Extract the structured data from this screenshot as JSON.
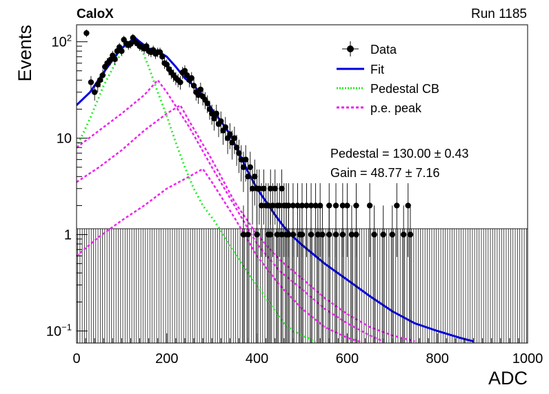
{
  "header": {
    "experiment": "CaloX",
    "run": "Run 1185"
  },
  "legend": [
    {
      "label": "Data",
      "kind": "marker",
      "color": "#000000"
    },
    {
      "label": "Fit",
      "kind": "solid",
      "color": "#0000dd"
    },
    {
      "label": "Pedestal CB",
      "kind": "dotted",
      "color": "#22ee22"
    },
    {
      "label": "p.e. peak",
      "kind": "dashed",
      "color": "#ee22ee"
    }
  ],
  "fit_results": {
    "pedestal": "Pedestal = 130.00",
    "pedestal_err": "± 0.43",
    "gain": "Gain = 48.77",
    "gain_err": "± 7.16"
  },
  "chart_data": {
    "type": "scatter",
    "xlabel": "ADC",
    "ylabel": "Events",
    "xlim": [
      0,
      1000
    ],
    "ylim": [
      0.075,
      150
    ],
    "ylog": true,
    "xticks": [
      "0",
      "200",
      "400",
      "600",
      "800",
      "1000"
    ],
    "yticks": [
      {
        "value": 0.1,
        "base": "10",
        "exp": "−1"
      },
      {
        "value": 1,
        "label": "1"
      },
      {
        "value": 10,
        "label": "10"
      },
      {
        "value": 100,
        "base": "10",
        "exp": "2"
      }
    ],
    "bin_width": 5,
    "data_points": [
      [
        22,
        123
      ],
      [
        32,
        38
      ],
      [
        40,
        30
      ],
      [
        47,
        36
      ],
      [
        52,
        40
      ],
      [
        58,
        45
      ],
      [
        63,
        55
      ],
      [
        68,
        60
      ],
      [
        75,
        65
      ],
      [
        80,
        72
      ],
      [
        85,
        66
      ],
      [
        90,
        80
      ],
      [
        95,
        88
      ],
      [
        100,
        80
      ],
      [
        105,
        105
      ],
      [
        110,
        96
      ],
      [
        115,
        92
      ],
      [
        120,
        95
      ],
      [
        125,
        110
      ],
      [
        130,
        100
      ],
      [
        135,
        96
      ],
      [
        140,
        90
      ],
      [
        145,
        88
      ],
      [
        150,
        85
      ],
      [
        155,
        90
      ],
      [
        160,
        80
      ],
      [
        165,
        78
      ],
      [
        170,
        82
      ],
      [
        175,
        75
      ],
      [
        180,
        78
      ],
      [
        185,
        78
      ],
      [
        190,
        70
      ],
      [
        195,
        60
      ],
      [
        200,
        58
      ],
      [
        205,
        52
      ],
      [
        210,
        48
      ],
      [
        215,
        45
      ],
      [
        220,
        42
      ],
      [
        225,
        40
      ],
      [
        230,
        38
      ],
      [
        235,
        48
      ],
      [
        240,
        50
      ],
      [
        245,
        45
      ],
      [
        250,
        40
      ],
      [
        255,
        42
      ],
      [
        260,
        35
      ],
      [
        265,
        30
      ],
      [
        270,
        28
      ],
      [
        275,
        32
      ],
      [
        280,
        27
      ],
      [
        285,
        25
      ],
      [
        290,
        23
      ],
      [
        295,
        20
      ],
      [
        300,
        18
      ],
      [
        305,
        16
      ],
      [
        310,
        18
      ],
      [
        315,
        14
      ],
      [
        320,
        15
      ],
      [
        325,
        12
      ],
      [
        330,
        13
      ],
      [
        335,
        10
      ],
      [
        340,
        11
      ],
      [
        345,
        9
      ],
      [
        350,
        10
      ],
      [
        355,
        8
      ],
      [
        360,
        7
      ],
      [
        365,
        6
      ],
      [
        370,
        5
      ],
      [
        375,
        6
      ],
      [
        380,
        4
      ],
      [
        385,
        5
      ],
      [
        390,
        3
      ],
      [
        395,
        4
      ],
      [
        400,
        3
      ],
      [
        405,
        3
      ],
      [
        410,
        2
      ],
      [
        415,
        3
      ],
      [
        420,
        2
      ],
      [
        425,
        2
      ],
      [
        430,
        3
      ],
      [
        435,
        2
      ],
      [
        440,
        3
      ],
      [
        445,
        2
      ],
      [
        450,
        2
      ],
      [
        455,
        3
      ],
      [
        460,
        2
      ],
      [
        465,
        2
      ],
      [
        470,
        2
      ],
      [
        480,
        2
      ],
      [
        490,
        2
      ],
      [
        500,
        2
      ],
      [
        510,
        2
      ],
      [
        520,
        2
      ],
      [
        530,
        2
      ],
      [
        540,
        2
      ],
      [
        560,
        2
      ],
      [
        575,
        2
      ],
      [
        590,
        2
      ],
      [
        600,
        2
      ],
      [
        620,
        2
      ],
      [
        650,
        2
      ],
      [
        710,
        2
      ],
      [
        735,
        2
      ],
      [
        370,
        1
      ],
      [
        380,
        1
      ],
      [
        400,
        1
      ],
      [
        425,
        1
      ],
      [
        430,
        1
      ],
      [
        445,
        1
      ],
      [
        455,
        1
      ],
      [
        465,
        1
      ],
      [
        470,
        1
      ],
      [
        480,
        1
      ],
      [
        495,
        1
      ],
      [
        500,
        1
      ],
      [
        520,
        1
      ],
      [
        535,
        1
      ],
      [
        545,
        1
      ],
      [
        560,
        1
      ],
      [
        575,
        1
      ],
      [
        590,
        1
      ],
      [
        610,
        1
      ],
      [
        620,
        1
      ],
      [
        660,
        1
      ],
      [
        680,
        1
      ],
      [
        700,
        1
      ],
      [
        725,
        1
      ],
      [
        740,
        1
      ]
    ],
    "fit": [
      [
        0,
        22
      ],
      [
        30,
        30
      ],
      [
        60,
        48
      ],
      [
        90,
        75
      ],
      [
        110,
        95
      ],
      [
        125,
        105
      ],
      [
        130,
        110
      ],
      [
        140,
        100
      ],
      [
        160,
        85
      ],
      [
        180,
        80
      ],
      [
        200,
        70
      ],
      [
        220,
        55
      ],
      [
        240,
        42
      ],
      [
        260,
        35
      ],
      [
        280,
        28
      ],
      [
        300,
        20
      ],
      [
        320,
        15
      ],
      [
        340,
        11
      ],
      [
        360,
        7
      ],
      [
        380,
        4.5
      ],
      [
        400,
        3
      ],
      [
        420,
        2.2
      ],
      [
        440,
        1.6
      ],
      [
        460,
        1.2
      ],
      [
        480,
        0.95
      ],
      [
        500,
        0.78
      ],
      [
        550,
        0.5
      ],
      [
        600,
        0.34
      ],
      [
        650,
        0.23
      ],
      [
        700,
        0.16
      ],
      [
        750,
        0.12
      ],
      [
        800,
        0.1
      ],
      [
        850,
        0.085
      ],
      [
        880,
        0.078
      ]
    ],
    "pedestal_cb": [
      [
        0,
        8
      ],
      [
        30,
        16
      ],
      [
        60,
        35
      ],
      [
        90,
        65
      ],
      [
        110,
        90
      ],
      [
        125,
        102
      ],
      [
        130,
        105
      ],
      [
        140,
        95
      ],
      [
        160,
        55
      ],
      [
        180,
        30
      ],
      [
        200,
        17
      ],
      [
        220,
        9
      ],
      [
        240,
        5
      ],
      [
        260,
        3
      ],
      [
        280,
        2
      ],
      [
        300,
        1.5
      ],
      [
        320,
        1.1
      ],
      [
        340,
        0.75
      ],
      [
        360,
        0.55
      ],
      [
        380,
        0.4
      ],
      [
        400,
        0.3
      ],
      [
        420,
        0.22
      ],
      [
        440,
        0.16
      ],
      [
        460,
        0.12
      ],
      [
        480,
        0.1
      ],
      [
        500,
        0.09
      ],
      [
        530,
        0.077
      ]
    ],
    "pe_peaks": [
      [
        [
          0,
          8
        ],
        [
          50,
          12
        ],
        [
          100,
          18
        ],
        [
          150,
          28
        ],
        [
          180,
          40
        ],
        [
          200,
          30
        ],
        [
          250,
          13
        ],
        [
          300,
          5
        ],
        [
          350,
          2
        ],
        [
          400,
          0.8
        ],
        [
          450,
          0.42
        ],
        [
          500,
          0.27
        ],
        [
          550,
          0.17
        ],
        [
          600,
          0.12
        ],
        [
          650,
          0.09
        ],
        [
          680,
          0.078
        ]
      ],
      [
        [
          0,
          3.5
        ],
        [
          50,
          5
        ],
        [
          100,
          7.5
        ],
        [
          150,
          12
        ],
        [
          200,
          18
        ],
        [
          230,
          22
        ],
        [
          250,
          15
        ],
        [
          300,
          6
        ],
        [
          350,
          2.2
        ],
        [
          400,
          1
        ],
        [
          450,
          0.55
        ],
        [
          500,
          0.35
        ],
        [
          550,
          0.22
        ],
        [
          600,
          0.15
        ],
        [
          650,
          0.11
        ],
        [
          700,
          0.09
        ],
        [
          750,
          0.078
        ]
      ],
      [
        [
          0,
          0.6
        ],
        [
          50,
          0.95
        ],
        [
          100,
          1.4
        ],
        [
          150,
          2
        ],
        [
          200,
          3
        ],
        [
          250,
          4
        ],
        [
          280,
          4.8
        ],
        [
          300,
          3.5
        ],
        [
          350,
          1.5
        ],
        [
          400,
          0.6
        ],
        [
          450,
          0.3
        ],
        [
          500,
          0.17
        ],
        [
          550,
          0.11
        ],
        [
          600,
          0.085
        ],
        [
          630,
          0.077
        ]
      ]
    ]
  }
}
